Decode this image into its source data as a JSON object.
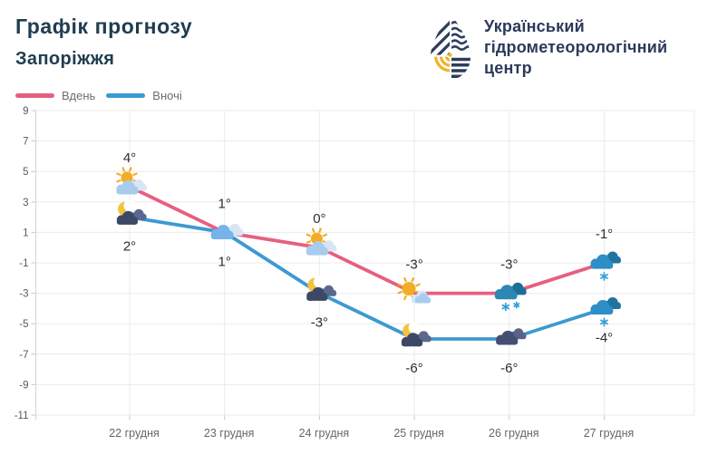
{
  "header": {
    "title": "Графік прогнозу",
    "city": "Запоріжжя",
    "org_lines": [
      "Український",
      "гідрометеорологічний",
      "центр"
    ]
  },
  "brand_colors": {
    "logo_navy": "#2e3d5e",
    "logo_yellow": "#f0b429",
    "title_text": "#203d50"
  },
  "chart_data": {
    "type": "line",
    "categories": [
      "22 грудня",
      "23 грудня",
      "24 грудня",
      "25 грудня",
      "26 грудня",
      "27 грудня"
    ],
    "series": [
      {
        "name": "Вдень",
        "color": "#e75f80",
        "values": [
          4,
          1,
          0,
          -3,
          -3,
          -1
        ],
        "point_labels": [
          "4°",
          "1°",
          "0°",
          "-3°",
          "-3°",
          "-1°"
        ],
        "label_position": "above",
        "icons": [
          "sun-cloud",
          "cloud",
          "sun-cloud",
          "sun-small-cloud",
          "snow-showers-cloud",
          "snow-cloud"
        ]
      },
      {
        "name": "Вночі",
        "color": "#3d99d1",
        "values": [
          2,
          1,
          -3,
          -6,
          -6,
          -4
        ],
        "point_labels": [
          "2°",
          "1°",
          "-3°",
          "-6°",
          "-6°",
          "-4°"
        ],
        "label_position": "below",
        "icons": [
          "moon-cloud",
          null,
          "moon-cloud",
          "moon-cloud",
          "dark-cloud",
          "snow-cloud"
        ]
      }
    ],
    "ylim": [
      -11,
      9
    ],
    "ytick_step": 2,
    "grid": true,
    "legend_position": "top-left",
    "title": "Графік прогнозу Запоріжжя",
    "xlabel": "",
    "ylabel": ""
  },
  "icon_colors": {
    "sun": "#f3ac25",
    "moon": "#f2c43d",
    "cloud_light": "#a9cbee",
    "cloud_light_back": "#d6e6f7",
    "cloud_mid": "#77b3ea",
    "cloud_dark_navy": "#3c4866",
    "cloud_slate_back": "#5c678e",
    "cloud_teal": "#2d87b5",
    "cloud_teal_dark": "#1d6e9a",
    "cloud_storm": "#454f73",
    "cloud_storm_back": "#5a6387",
    "cloud_snow": "#2e8ec6",
    "cloud_snow_back": "#20749f",
    "snowflake": "#35a0d8"
  }
}
